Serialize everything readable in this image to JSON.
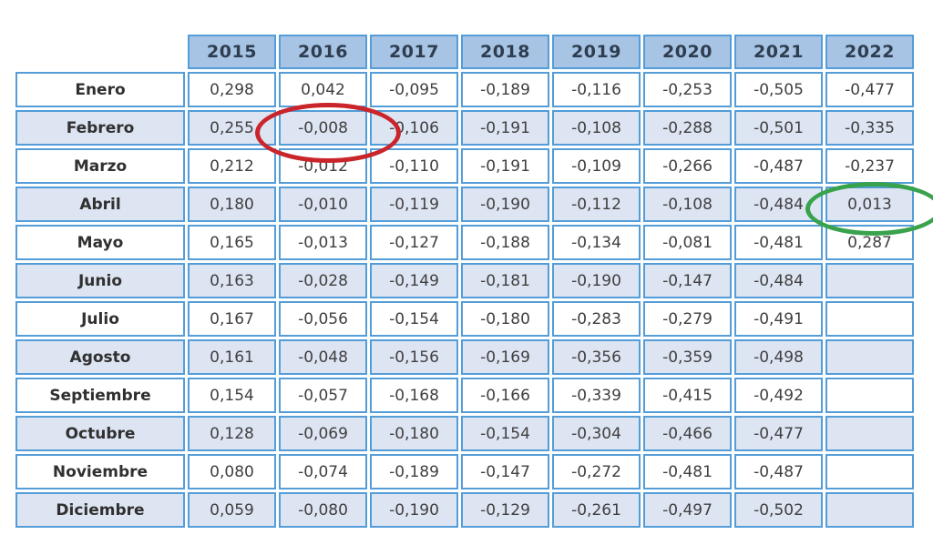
{
  "chart_data": {
    "type": "table",
    "title": "",
    "columns": [
      "2015",
      "2016",
      "2017",
      "2018",
      "2019",
      "2020",
      "2021",
      "2022"
    ],
    "rows": [
      {
        "label": "Enero",
        "values": [
          "0,298",
          "0,042",
          "-0,095",
          "-0,189",
          "-0,116",
          "-0,253",
          "-0,505",
          "-0,477"
        ]
      },
      {
        "label": "Febrero",
        "values": [
          "0,255",
          "-0,008",
          "-0,106",
          "-0,191",
          "-0,108",
          "-0,288",
          "-0,501",
          "-0,335"
        ]
      },
      {
        "label": "Marzo",
        "values": [
          "0,212",
          "-0,012",
          "-0,110",
          "-0,191",
          "-0,109",
          "-0,266",
          "-0,487",
          "-0,237"
        ]
      },
      {
        "label": "Abril",
        "values": [
          "0,180",
          "-0,010",
          "-0,119",
          "-0,190",
          "-0,112",
          "-0,108",
          "-0,484",
          "0,013"
        ]
      },
      {
        "label": "Mayo",
        "values": [
          "0,165",
          "-0,013",
          "-0,127",
          "-0,188",
          "-0,134",
          "-0,081",
          "-0,481",
          "0,287"
        ]
      },
      {
        "label": "Junio",
        "values": [
          "0,163",
          "-0,028",
          "-0,149",
          "-0,181",
          "-0,190",
          "-0,147",
          "-0,484",
          ""
        ]
      },
      {
        "label": "Julio",
        "values": [
          "0,167",
          "-0,056",
          "-0,154",
          "-0,180",
          "-0,283",
          "-0,279",
          "-0,491",
          ""
        ]
      },
      {
        "label": "Agosto",
        "values": [
          "0,161",
          "-0,048",
          "-0,156",
          "-0,169",
          "-0,356",
          "-0,359",
          "-0,498",
          ""
        ]
      },
      {
        "label": "Septiembre",
        "values": [
          "0,154",
          "-0,057",
          "-0,168",
          "-0,166",
          "-0,339",
          "-0,415",
          "-0,492",
          ""
        ]
      },
      {
        "label": "Octubre",
        "values": [
          "0,128",
          "-0,069",
          "-0,180",
          "-0,154",
          "-0,304",
          "-0,466",
          "-0,477",
          ""
        ]
      },
      {
        "label": "Noviembre",
        "values": [
          "0,080",
          "-0,074",
          "-0,189",
          "-0,147",
          "-0,272",
          "-0,481",
          "-0,487",
          ""
        ]
      },
      {
        "label": "Diciembre",
        "values": [
          "0,059",
          "-0,080",
          "-0,190",
          "-0,129",
          "-0,261",
          "-0,497",
          "-0,502",
          ""
        ]
      }
    ]
  },
  "annotations": [
    {
      "shape": "ellipse",
      "color": "#c9252b",
      "highlights_row": "Febrero",
      "highlights_column": "2016",
      "highlighted_value": "-0,008"
    },
    {
      "shape": "ellipse",
      "color": "#38a24c",
      "highlights_row": "Abril",
      "highlights_column": "2022",
      "highlighted_value": "0,013"
    }
  ],
  "colors": {
    "header_bg": "#a7c4e4",
    "header_text": "#2e3d4f",
    "cell_border": "#549dd8",
    "alt_row_bg": "#dde4f2",
    "row_bg": "#ffffff",
    "label_text": "#303030",
    "value_text": "#404040"
  }
}
